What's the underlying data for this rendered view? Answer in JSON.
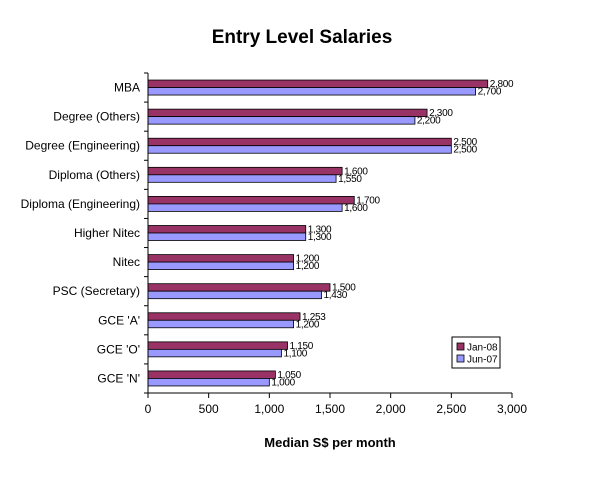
{
  "chart_data": {
    "type": "bar",
    "orientation": "horizontal",
    "title": "Entry Level Salaries",
    "xlabel": "Median S$ per month",
    "ylabel": "",
    "categories": [
      "MBA",
      "Degree (Others)",
      "Degree (Engineering)",
      "Diploma (Others)",
      "Diploma (Engineering)",
      "Higher Nitec",
      "Nitec",
      "PSC (Secretary)",
      "GCE 'A'",
      "GCE 'O'",
      "GCE 'N'"
    ],
    "series": [
      {
        "name": "Jan-08",
        "color": "#993366",
        "values": [
          2800,
          2300,
          2500,
          1600,
          1700,
          1300,
          1200,
          1500,
          1253,
          1150,
          1050
        ],
        "labels": [
          "2,800",
          "2,300",
          "2,500",
          "1,600",
          "1,700",
          "1,300",
          "1,200",
          "1,500",
          "1,253",
          "1,150",
          "1,050"
        ]
      },
      {
        "name": "Jun-07",
        "color": "#9999ff",
        "values": [
          2700,
          2200,
          2500,
          1550,
          1600,
          1300,
          1200,
          1430,
          1200,
          1100,
          1000
        ],
        "labels": [
          "2,700",
          "2,200",
          "2,500",
          "1,550",
          "1,600",
          "1,300",
          "1,200",
          "1,430",
          "1,200",
          "1,100",
          "1,000"
        ]
      }
    ],
    "xlim": [
      0,
      3000
    ],
    "xticks": [
      0,
      500,
      1000,
      1500,
      2000,
      2500,
      3000
    ],
    "xtick_labels": [
      "0",
      "500",
      "1,000",
      "1,500",
      "2,000",
      "2,500",
      "3,000"
    ],
    "grid": false,
    "legend": {
      "position": "bottom-right",
      "entries": [
        "Jan-08",
        "Jun-07"
      ]
    }
  }
}
